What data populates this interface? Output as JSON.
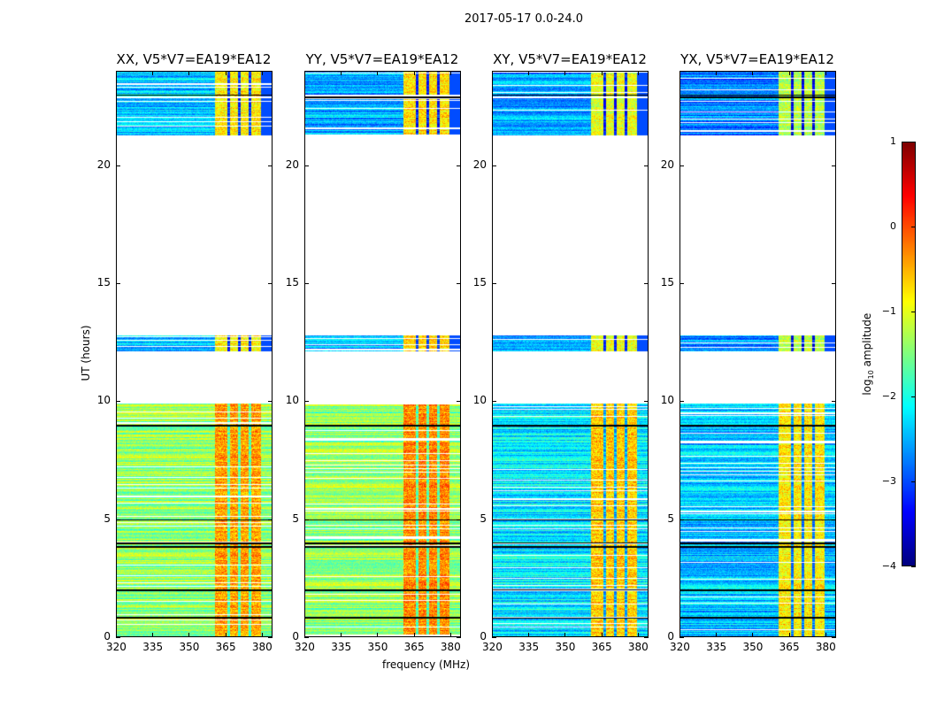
{
  "figure_title": "2017-05-17 0.0-24.0",
  "chart_data": {
    "type": "heatmap",
    "xlabel": "frequency (MHz)",
    "ylabel": "UT (hours)",
    "xlim": [
      320,
      384.4
    ],
    "ylim": [
      0,
      24
    ],
    "xticks": [
      320,
      335,
      350,
      365,
      380
    ],
    "yticks": [
      0,
      5,
      10,
      15,
      20
    ],
    "panels": [
      {
        "title": "XX, V5*V7=EA19*EA12",
        "baseline": -1.4,
        "upper_baseline": -2.4,
        "rfi_level": -0.4
      },
      {
        "title": "YY, V5*V7=EA19*EA12",
        "baseline": -1.4,
        "upper_baseline": -2.5,
        "rfi_level": -0.3
      },
      {
        "title": "XY, V5*V7=EA19*EA12",
        "baseline": -2.2,
        "upper_baseline": -2.6,
        "rfi_level": -0.6
      },
      {
        "title": "YX, V5*V7=EA19*EA12",
        "baseline": -2.4,
        "upper_baseline": -2.7,
        "rfi_level": -0.8
      }
    ],
    "data_segments_hours": [
      [
        0,
        9.9
      ],
      [
        12.1,
        12.8
      ],
      [
        21.3,
        24
      ]
    ],
    "rfi_band_mhz": [
      361,
      380
    ],
    "colorbar": {
      "label_prefix": "log",
      "label_sub": "10",
      "label_suffix": " amplitude",
      "range": [
        -4,
        1
      ],
      "ticks": [
        "1",
        "0",
        "−1",
        "−2",
        "−3",
        "−4"
      ],
      "colormap": "jet"
    }
  }
}
